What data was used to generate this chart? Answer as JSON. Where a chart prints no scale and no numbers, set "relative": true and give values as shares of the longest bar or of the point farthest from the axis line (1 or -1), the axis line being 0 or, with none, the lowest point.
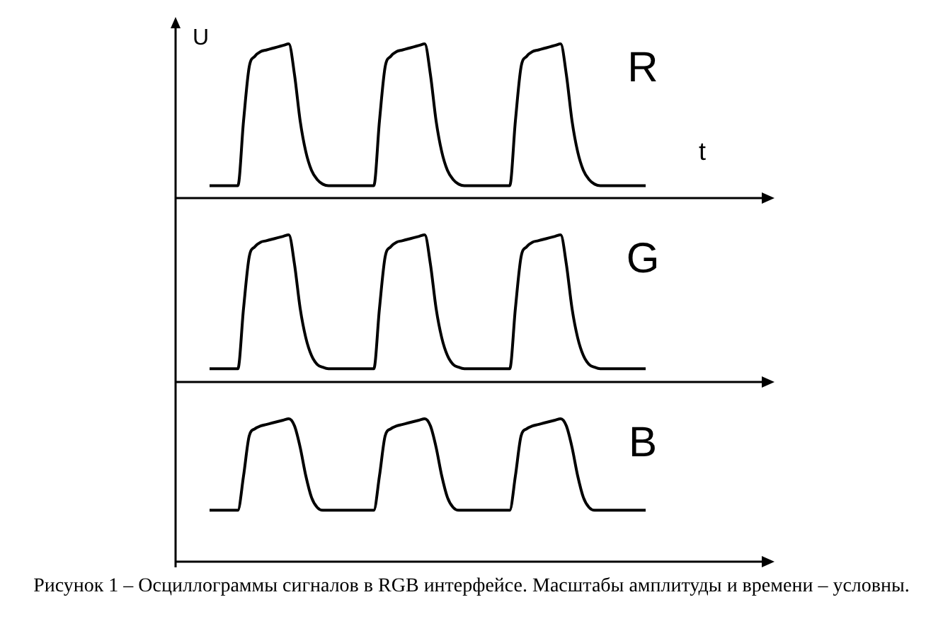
{
  "chart_data": [
    {
      "type": "line",
      "relative": true,
      "title": "R",
      "ylabel": "U",
      "xlabel": "t",
      "legend": false,
      "marker": "none",
      "categories": [
        null,
        null,
        null,
        null,
        null,
        null,
        null,
        null,
        null,
        null,
        null,
        null,
        null,
        null,
        null,
        null,
        null,
        null,
        null,
        null,
        null,
        null,
        null,
        null,
        null,
        null,
        null,
        null,
        null,
        null,
        null,
        null,
        null,
        null,
        null,
        null,
        null,
        null,
        null,
        null,
        null,
        null,
        null,
        null,
        null,
        null,
        null,
        null,
        null,
        null,
        null,
        null,
        null,
        null,
        null,
        null,
        null,
        null,
        null,
        null,
        null,
        null,
        null,
        null,
        null,
        null,
        null,
        null,
        null,
        null,
        null,
        null,
        null,
        null,
        null,
        null,
        null,
        null
      ],
      "series": [
        {
          "color": "#000000",
          "values": [
            0.08,
            0.08,
            0.08,
            0.08,
            0.08,
            0.08,
            0.5,
            0.85,
            0.92,
            0.95,
            0.96,
            0.97,
            0.98,
            0.99,
            1.0,
            0.8,
            0.5,
            0.3,
            0.18,
            0.12,
            0.09,
            0.08,
            0.08,
            0.08,
            0.08,
            0.08,
            0.08,
            0.08,
            0.08,
            0.08,
            0.5,
            0.85,
            0.92,
            0.95,
            0.96,
            0.97,
            0.98,
            0.99,
            1.0,
            0.8,
            0.5,
            0.3,
            0.18,
            0.12,
            0.09,
            0.08,
            0.08,
            0.08,
            0.08,
            0.08,
            0.08,
            0.08,
            0.08,
            0.08,
            0.5,
            0.85,
            0.92,
            0.95,
            0.96,
            0.97,
            0.98,
            0.99,
            1.0,
            0.8,
            0.5,
            0.3,
            0.18,
            0.12,
            0.09,
            0.08,
            0.08,
            0.08,
            0.08,
            0.08,
            0.08,
            0.08,
            0.08,
            0.08
          ]
        }
      ]
    },
    {
      "type": "line",
      "relative": true,
      "title": "G",
      "legend": false,
      "marker": "none",
      "categories": [
        null,
        null,
        null,
        null,
        null,
        null,
        null,
        null,
        null,
        null,
        null,
        null,
        null,
        null,
        null,
        null,
        null,
        null,
        null,
        null,
        null,
        null,
        null,
        null,
        null,
        null,
        null,
        null,
        null,
        null,
        null,
        null,
        null,
        null,
        null,
        null,
        null,
        null,
        null,
        null,
        null,
        null,
        null,
        null,
        null,
        null,
        null,
        null,
        null,
        null,
        null,
        null,
        null,
        null,
        null,
        null,
        null,
        null,
        null,
        null,
        null,
        null,
        null,
        null,
        null,
        null,
        null,
        null,
        null,
        null,
        null,
        null,
        null,
        null,
        null,
        null,
        null,
        null
      ],
      "series": [
        {
          "color": "#000000",
          "values": [
            0.09,
            0.09,
            0.09,
            0.09,
            0.09,
            0.09,
            0.5,
            0.85,
            0.92,
            0.95,
            0.96,
            0.97,
            0.98,
            0.99,
            1.0,
            0.8,
            0.5,
            0.3,
            0.18,
            0.12,
            0.1,
            0.09,
            0.09,
            0.09,
            0.09,
            0.09,
            0.09,
            0.09,
            0.09,
            0.09,
            0.5,
            0.85,
            0.92,
            0.95,
            0.96,
            0.97,
            0.98,
            0.99,
            1.0,
            0.8,
            0.5,
            0.3,
            0.18,
            0.12,
            0.1,
            0.09,
            0.09,
            0.09,
            0.09,
            0.09,
            0.09,
            0.09,
            0.09,
            0.09,
            0.5,
            0.85,
            0.92,
            0.95,
            0.96,
            0.97,
            0.98,
            0.99,
            1.0,
            0.8,
            0.5,
            0.3,
            0.18,
            0.12,
            0.1,
            0.09,
            0.09,
            0.09,
            0.09,
            0.09,
            0.09,
            0.09,
            0.09,
            0.09
          ]
        }
      ]
    },
    {
      "type": "line",
      "relative": true,
      "title": "B",
      "legend": false,
      "marker": "none",
      "annotations": [
        "Рисунок 1 – Осциллограммы сигналов в RGB интерфейсе. Масштабы амплитуды и времени – условны."
      ],
      "categories": [
        null,
        null,
        null,
        null,
        null,
        null,
        null,
        null,
        null,
        null,
        null,
        null,
        null,
        null,
        null,
        null,
        null,
        null,
        null,
        null,
        null,
        null,
        null,
        null,
        null,
        null,
        null,
        null,
        null,
        null,
        null,
        null,
        null,
        null,
        null,
        null,
        null,
        null,
        null,
        null,
        null,
        null,
        null,
        null,
        null,
        null,
        null,
        null,
        null,
        null,
        null,
        null,
        null,
        null,
        null,
        null,
        null,
        null,
        null,
        null,
        null,
        null,
        null,
        null,
        null,
        null,
        null,
        null,
        null,
        null,
        null,
        null,
        null,
        null,
        null,
        null,
        null,
        null
      ],
      "series": [
        {
          "color": "#000000",
          "values": [
            0.36,
            0.36,
            0.36,
            0.36,
            0.36,
            0.36,
            0.6,
            0.88,
            0.93,
            0.95,
            0.96,
            0.97,
            0.98,
            0.99,
            1.0,
            0.95,
            0.8,
            0.6,
            0.45,
            0.38,
            0.36,
            0.36,
            0.36,
            0.36,
            0.36,
            0.36,
            0.36,
            0.36,
            0.36,
            0.36,
            0.6,
            0.88,
            0.93,
            0.95,
            0.96,
            0.97,
            0.98,
            0.99,
            1.0,
            0.95,
            0.8,
            0.6,
            0.45,
            0.38,
            0.36,
            0.36,
            0.36,
            0.36,
            0.36,
            0.36,
            0.36,
            0.36,
            0.36,
            0.36,
            0.6,
            0.88,
            0.93,
            0.95,
            0.96,
            0.97,
            0.98,
            0.99,
            1.0,
            0.95,
            0.8,
            0.6,
            0.45,
            0.38,
            0.36,
            0.36,
            0.36,
            0.36,
            0.36,
            0.36,
            0.36,
            0.36,
            0.36,
            0.36
          ]
        }
      ]
    }
  ]
}
